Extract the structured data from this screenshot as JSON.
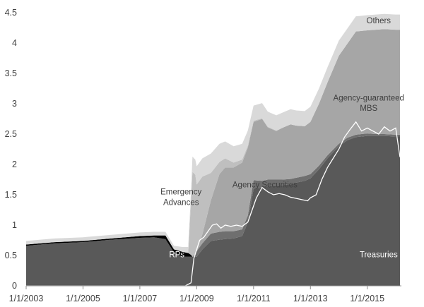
{
  "chart_data": {
    "type": "area",
    "stacked": true,
    "x_label_start": "1/1/2003",
    "xlim": [
      2003.0,
      2016.2
    ],
    "ylim": [
      0,
      4.5
    ],
    "y_ticks": [
      0,
      0.5,
      1,
      1.5,
      2,
      2.5,
      3,
      3.5,
      4,
      4.5
    ],
    "x_ticks": [
      {
        "x": 2003,
        "label": "1/1/2003"
      },
      {
        "x": 2005,
        "label": "1/1/2005"
      },
      {
        "x": 2007,
        "label": "1/1/2007"
      },
      {
        "x": 2009,
        "label": "1/1/2009"
      },
      {
        "x": 2011,
        "label": "1/1/2011"
      },
      {
        "x": 2013,
        "label": "1/1/2013"
      },
      {
        "x": 2015,
        "label": "1/1/2015"
      }
    ],
    "x": [
      2003.0,
      2004.0,
      2005.0,
      2006.0,
      2007.0,
      2007.5,
      2007.9,
      2008.2,
      2008.5,
      2008.7,
      2008.8,
      2008.85,
      2008.95,
      2009.0,
      2009.2,
      2009.5,
      2009.8,
      2010.0,
      2010.3,
      2010.6,
      2010.8,
      2011.0,
      2011.3,
      2011.5,
      2011.8,
      2012.0,
      2012.3,
      2012.5,
      2012.8,
      2013.0,
      2013.3,
      2013.6,
      2014.0,
      2014.3,
      2014.6,
      2015.0,
      2015.3,
      2015.6,
      2016.0,
      2016.15
    ],
    "series": [
      {
        "name": "Treasuries",
        "color": "#595959",
        "values": [
          0.66,
          0.7,
          0.72,
          0.76,
          0.79,
          0.8,
          0.77,
          0.55,
          0.48,
          0.48,
          0.48,
          0.48,
          0.48,
          0.48,
          0.6,
          0.74,
          0.76,
          0.77,
          0.78,
          0.82,
          1.05,
          1.6,
          1.62,
          1.64,
          1.65,
          1.66,
          1.67,
          1.7,
          1.73,
          1.77,
          1.92,
          2.1,
          2.3,
          2.4,
          2.45,
          2.47,
          2.47,
          2.47,
          2.46,
          2.46
        ]
      },
      {
        "name": "RPs",
        "color": "#000000",
        "values": [
          0.02,
          0.02,
          0.02,
          0.02,
          0.03,
          0.03,
          0.06,
          0.05,
          0.08,
          0.06,
          0.03,
          0.0,
          0.0,
          0.0,
          0.0,
          0.0,
          0.0,
          0.0,
          0.0,
          0.0,
          0.0,
          0.0,
          0.0,
          0.0,
          0.0,
          0.0,
          0.0,
          0.0,
          0.0,
          0.0,
          0.0,
          0.0,
          0.0,
          0.0,
          0.0,
          0.0,
          0.0,
          0.0,
          0.0,
          0.0
        ]
      },
      {
        "name": "Agency Securities",
        "color": "#6f6f6f",
        "values": [
          0.0,
          0.0,
          0.0,
          0.0,
          0.0,
          0.0,
          0.0,
          0.0,
          0.0,
          0.0,
          0.0,
          0.0,
          0.05,
          0.09,
          0.1,
          0.12,
          0.13,
          0.13,
          0.12,
          0.11,
          0.11,
          0.14,
          0.11,
          0.11,
          0.1,
          0.09,
          0.09,
          0.08,
          0.08,
          0.07,
          0.06,
          0.05,
          0.04,
          0.04,
          0.04,
          0.04,
          0.03,
          0.03,
          0.03,
          0.03
        ]
      },
      {
        "name": "Agency-guaranteed MBS",
        "color": "#a6a6a6",
        "values": [
          0.0,
          0.0,
          0.0,
          0.0,
          0.0,
          0.0,
          0.0,
          0.0,
          0.0,
          0.0,
          0.0,
          0.0,
          0.0,
          0.0,
          0.15,
          0.55,
          0.95,
          1.05,
          1.05,
          1.1,
          1.12,
          0.96,
          1.02,
          0.86,
          0.8,
          0.85,
          0.9,
          0.86,
          0.82,
          0.86,
          1.02,
          1.2,
          1.45,
          1.55,
          1.7,
          1.7,
          1.72,
          1.73,
          1.73,
          1.73
        ]
      },
      {
        "name": "Emergency Advances",
        "color": "#bfbfbf",
        "values": [
          0.0,
          0.0,
          0.0,
          0.0,
          0.0,
          0.0,
          0.0,
          0.0,
          0.0,
          0.0,
          0.9,
          1.4,
          1.3,
          1.1,
          0.95,
          0.45,
          0.2,
          0.15,
          0.08,
          0.05,
          0.03,
          0.02,
          0.01,
          0.01,
          0.01,
          0.0,
          0.0,
          0.0,
          0.0,
          0.0,
          0.0,
          0.0,
          0.0,
          0.0,
          0.0,
          0.0,
          0.0,
          0.0,
          0.0,
          0.0
        ]
      },
      {
        "name": "Others",
        "color": "#d9d9d9",
        "values": [
          0.06,
          0.06,
          0.06,
          0.06,
          0.06,
          0.06,
          0.06,
          0.06,
          0.08,
          0.1,
          0.15,
          0.25,
          0.25,
          0.3,
          0.3,
          0.32,
          0.3,
          0.28,
          0.27,
          0.26,
          0.25,
          0.25,
          0.25,
          0.25,
          0.25,
          0.25,
          0.25,
          0.25,
          0.25,
          0.25,
          0.25,
          0.25,
          0.25,
          0.25,
          0.25,
          0.25,
          0.25,
          0.25,
          0.25,
          0.25
        ]
      }
    ],
    "overlay_line": {
      "color": "#ffffff",
      "x": [
        2003.0,
        2008.6,
        2008.8,
        2008.9,
        2009.0,
        2009.1,
        2009.25,
        2009.4,
        2009.55,
        2009.7,
        2009.85,
        2010.0,
        2010.2,
        2010.4,
        2010.6,
        2010.8,
        2010.95,
        2011.1,
        2011.3,
        2011.5,
        2011.7,
        2011.9,
        2012.1,
        2012.3,
        2012.5,
        2012.7,
        2012.9,
        2013.0,
        2013.2,
        2013.4,
        2013.6,
        2013.8,
        2014.0,
        2014.2,
        2014.4,
        2014.6,
        2014.8,
        2015.0,
        2015.2,
        2015.4,
        2015.6,
        2015.8,
        2016.0,
        2016.15
      ],
      "values": [
        0.0,
        0.0,
        0.05,
        0.45,
        0.6,
        0.75,
        0.8,
        0.9,
        1.0,
        1.02,
        0.95,
        1.0,
        0.98,
        1.0,
        0.98,
        1.05,
        1.25,
        1.45,
        1.62,
        1.55,
        1.5,
        1.52,
        1.5,
        1.46,
        1.44,
        1.42,
        1.4,
        1.45,
        1.5,
        1.75,
        1.95,
        2.1,
        2.25,
        2.45,
        2.58,
        2.7,
        2.55,
        2.6,
        2.55,
        2.5,
        2.62,
        2.55,
        2.6,
        2.12
      ]
    },
    "annotations": [
      {
        "text": "Others",
        "x": 2015.4,
        "y": 4.37,
        "style": "dark"
      },
      {
        "text": "Agency-guaranteed",
        "x": 2015.05,
        "y": 3.1,
        "style": "dark"
      },
      {
        "text": "MBS",
        "x": 2015.05,
        "y": 2.93,
        "style": "dark"
      },
      {
        "text": "Emergency",
        "x": 2008.45,
        "y": 1.55,
        "style": "dark"
      },
      {
        "text": "Advances",
        "x": 2008.45,
        "y": 1.38,
        "style": "dark"
      },
      {
        "text": "Agency Securities",
        "x": 2011.4,
        "y": 1.67,
        "style": "dark"
      },
      {
        "text": "RPs",
        "x": 2008.3,
        "y": 0.52,
        "style": "light"
      },
      {
        "text": "Treasuries",
        "x": 2015.4,
        "y": 0.52,
        "style": "light"
      }
    ]
  }
}
